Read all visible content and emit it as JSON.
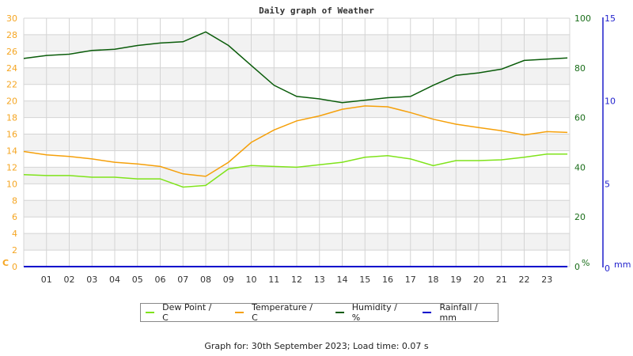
{
  "chart_data": {
    "type": "line",
    "title": "Daily graph of Weather",
    "xlabel": "",
    "x_ticks": [
      "01",
      "02",
      "03",
      "04",
      "05",
      "06",
      "07",
      "08",
      "09",
      "10",
      "11",
      "12",
      "13",
      "14",
      "15",
      "16",
      "17",
      "18",
      "19",
      "20",
      "21",
      "22",
      "23"
    ],
    "x": [
      0,
      1,
      2,
      3,
      4,
      5,
      6,
      7,
      8,
      9,
      10,
      11,
      12,
      13,
      14,
      15,
      16,
      17,
      18,
      19,
      20,
      21,
      22,
      23,
      23.9
    ],
    "axes": {
      "left": {
        "label": "C",
        "ylim": [
          0,
          30
        ],
        "ticks": [
          0,
          2,
          4,
          6,
          8,
          10,
          12,
          14,
          16,
          18,
          20,
          22,
          24,
          26,
          28,
          30
        ],
        "color": "#f5a623"
      },
      "right_humidity": {
        "label": "%",
        "ylim": [
          0,
          100
        ],
        "ticks": [
          0,
          20,
          40,
          60,
          80,
          100
        ],
        "color": "#1a6e1a"
      },
      "right_rain": {
        "label": "mm",
        "ylim": [
          0,
          15
        ],
        "ticks": [
          0,
          5,
          10,
          15
        ],
        "color": "#1f1fcc"
      }
    },
    "grid": true,
    "legend_position": "bottom",
    "series": [
      {
        "name": "Dew Point / C",
        "axis": "left",
        "color": "#7fe31a",
        "values": [
          11.1,
          11.0,
          11.0,
          10.8,
          10.8,
          10.6,
          10.6,
          9.6,
          9.8,
          11.8,
          12.2,
          12.1,
          12.0,
          12.3,
          12.6,
          13.2,
          13.4,
          13.0,
          12.2,
          12.8,
          12.8,
          12.9,
          13.2,
          13.6,
          13.6
        ]
      },
      {
        "name": "Temperature / C",
        "axis": "left",
        "color": "#f5a00a",
        "values": [
          13.9,
          13.5,
          13.3,
          13.0,
          12.6,
          12.4,
          12.1,
          11.2,
          10.9,
          12.6,
          15.0,
          16.5,
          17.6,
          18.2,
          19.0,
          19.4,
          19.3,
          18.6,
          17.8,
          17.2,
          16.8,
          16.4,
          15.9,
          16.3,
          16.2
        ]
      },
      {
        "name": "Humidity / %",
        "axis": "right_humidity",
        "color": "#0a5c0a",
        "values": [
          83.8,
          85,
          85.5,
          87,
          87.5,
          89,
          90,
          90.5,
          94.5,
          89,
          81,
          73,
          68.5,
          67.5,
          66,
          67,
          68,
          68.5,
          73,
          77,
          78,
          79.5,
          83,
          83.5,
          84
        ]
      },
      {
        "name": "Rainfall / mm",
        "axis": "right_rain",
        "color": "#0000cc",
        "values": [
          0,
          0,
          0,
          0,
          0,
          0,
          0,
          0,
          0,
          0,
          0,
          0,
          0,
          0,
          0,
          0,
          0,
          0,
          0,
          0,
          0,
          0,
          0,
          0,
          0
        ]
      }
    ]
  },
  "legend": {
    "items": [
      {
        "label": "Dew Point / C",
        "color": "#7fe31a"
      },
      {
        "label": "Temperature / C",
        "color": "#f5a00a"
      },
      {
        "label": "Humidity / %",
        "color": "#0a5c0a"
      },
      {
        "label": "Rainfall / mm",
        "color": "#0000cc"
      }
    ]
  },
  "footer": {
    "text": "Graph for: 30th September 2023; Load time: 0.07 s"
  }
}
